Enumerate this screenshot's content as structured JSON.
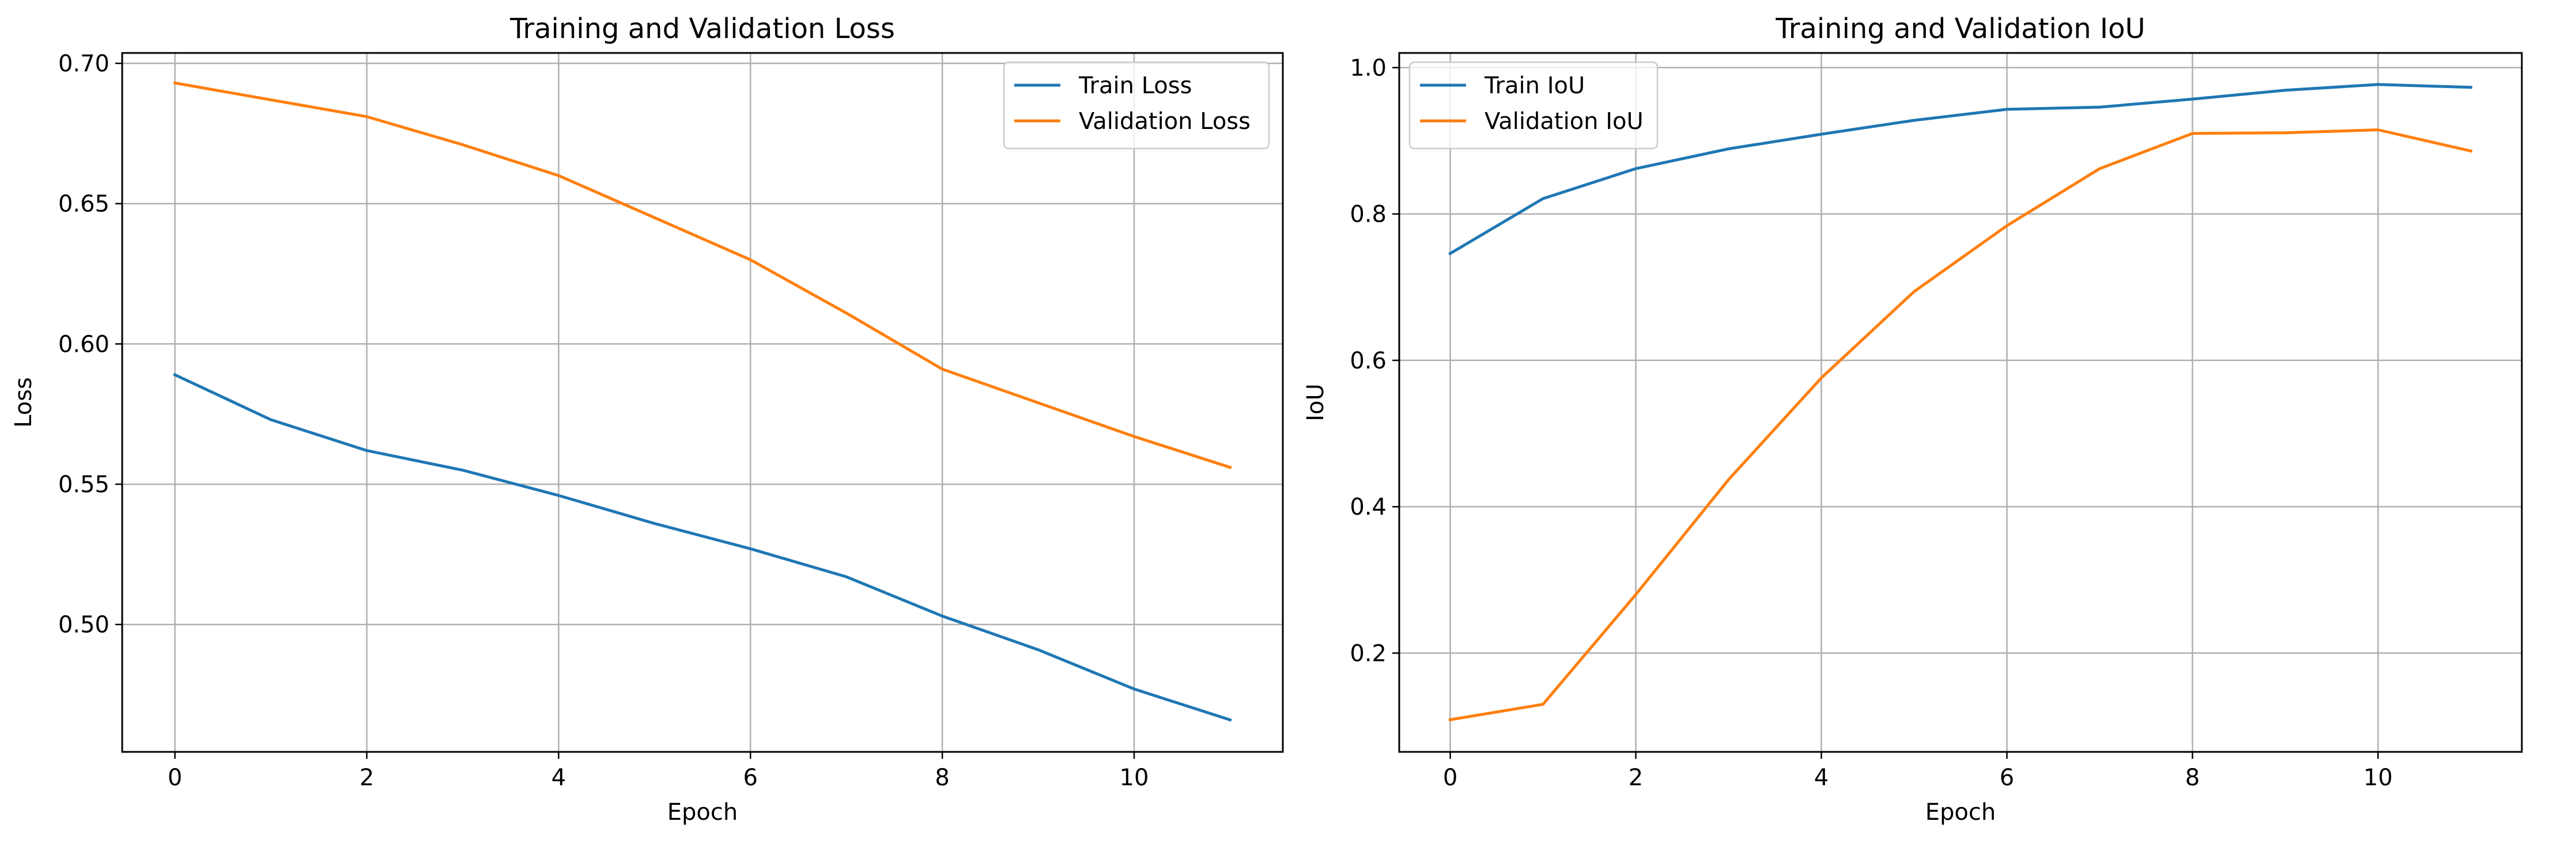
{
  "chart_data": [
    {
      "type": "line",
      "title": "Training and Validation Loss",
      "xlabel": "Epoch",
      "ylabel": "Loss",
      "xlim": [
        -0.55,
        11.55
      ],
      "ylim": [
        0.4546,
        0.7037
      ],
      "xticks": [
        0,
        2,
        4,
        6,
        8,
        10
      ],
      "yticks": [
        0.5,
        0.55,
        0.6,
        0.65,
        0.7
      ],
      "ytick_labels": [
        "0.50",
        "0.55",
        "0.60",
        "0.65",
        "0.70"
      ],
      "grid": true,
      "legend_position": "top-right",
      "x": [
        0,
        1,
        2,
        3,
        4,
        5,
        6,
        7,
        8,
        9,
        10,
        11
      ],
      "series": [
        {
          "name": "Train Loss",
          "color": "#1f77b4",
          "values": [
            0.589,
            0.573,
            0.562,
            0.555,
            0.546,
            0.536,
            0.527,
            0.517,
            0.503,
            0.491,
            0.477,
            0.466
          ]
        },
        {
          "name": "Validation Loss",
          "color": "#ff7f0e",
          "values": [
            0.693,
            0.687,
            0.681,
            0.671,
            0.66,
            0.645,
            0.63,
            0.611,
            0.591,
            0.579,
            0.567,
            0.556
          ]
        }
      ]
    },
    {
      "type": "line",
      "title": "Training and Validation IoU",
      "xlabel": "Epoch",
      "ylabel": "IoU",
      "xlim": [
        -0.55,
        11.55
      ],
      "ylim": [
        0.065,
        1.02
      ],
      "xticks": [
        0,
        2,
        4,
        6,
        8,
        10
      ],
      "yticks": [
        0.2,
        0.4,
        0.6,
        0.8,
        1.0
      ],
      "ytick_labels": [
        "0.2",
        "0.4",
        "0.6",
        "0.8",
        "1.0"
      ],
      "grid": true,
      "legend_position": "top-left",
      "x": [
        0,
        1,
        2,
        3,
        4,
        5,
        6,
        7,
        8,
        9,
        10,
        11
      ],
      "series": [
        {
          "name": "Train IoU",
          "color": "#1f77b4",
          "values": [
            0.746,
            0.821,
            0.862,
            0.889,
            0.909,
            0.928,
            0.943,
            0.946,
            0.957,
            0.969,
            0.977,
            0.973
          ]
        },
        {
          "name": "Validation IoU",
          "color": "#ff7f0e",
          "values": [
            0.109,
            0.13,
            0.28,
            0.437,
            0.576,
            0.694,
            0.784,
            0.862,
            0.91,
            0.911,
            0.915,
            0.886
          ]
        }
      ]
    }
  ]
}
